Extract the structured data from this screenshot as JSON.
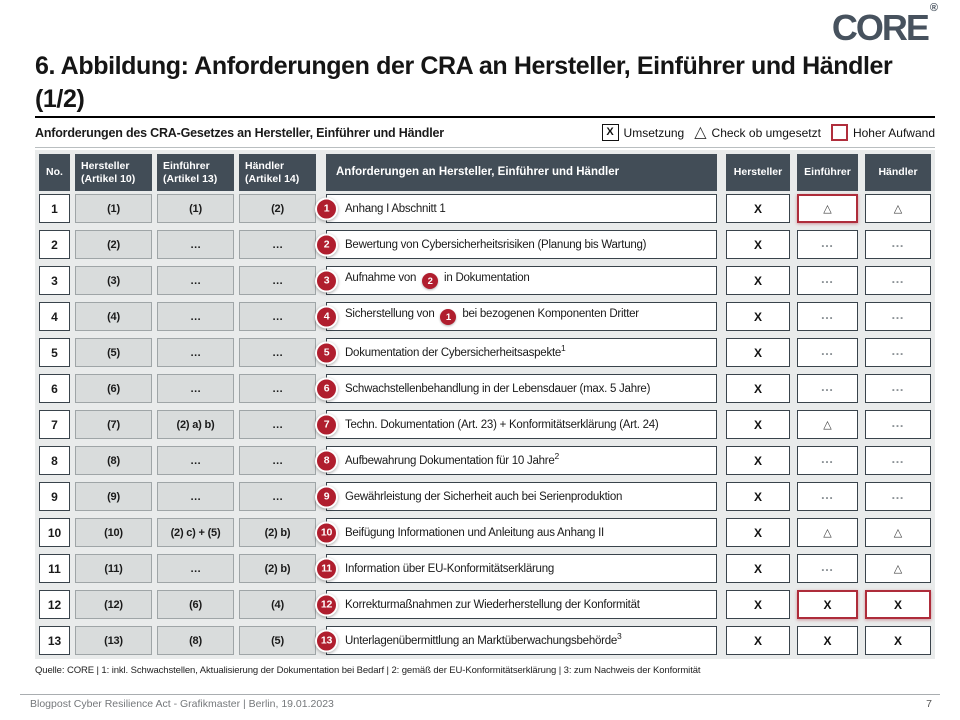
{
  "logo": {
    "text": "CORE",
    "reg": "®"
  },
  "title": "6. Abbildung: Anforderungen der CRA an Hersteller, Einführer und Händler (1/2)",
  "panel": {
    "header": "Anforderungen des CRA-Gesetzes  an Hersteller, Einführer und Händler",
    "legend": [
      {
        "icon": "x-box",
        "label": "Umsetzung"
      },
      {
        "icon": "triangle",
        "label": "Check ob umgesetzt"
      },
      {
        "icon": "red-box",
        "label": "Hoher Aufwand"
      }
    ]
  },
  "table": {
    "headers": [
      {
        "l1": "No."
      },
      {
        "l1": "Hersteller",
        "l2": "(Artikel 10)"
      },
      {
        "l1": "Einführer",
        "l2": "(Artikel 13)"
      },
      {
        "l1": "Händler",
        "l2": "(Artikel 14)"
      },
      {
        "l1": "Anforderungen an Hersteller, Einführer und Händler"
      },
      {
        "l1": "Hersteller"
      },
      {
        "l1": "Einführer"
      },
      {
        "l1": "Händler"
      }
    ],
    "rows": [
      {
        "no": "1",
        "articles": [
          "(1)",
          "(1)",
          "(2)"
        ],
        "badge": "1",
        "requirement": [
          {
            "t": "text",
            "v": "Anhang I Abschnitt 1"
          }
        ],
        "status": [
          {
            "mark": "X",
            "flag": false
          },
          {
            "mark": "triangle",
            "flag": true
          },
          {
            "mark": "triangle",
            "flag": false
          }
        ]
      },
      {
        "no": "2",
        "articles": [
          "(2)",
          "…",
          "…"
        ],
        "badge": "2",
        "requirement": [
          {
            "t": "text",
            "v": "Bewertung von Cybersicherheitsrisiken (Planung bis Wartung)"
          }
        ],
        "status": [
          {
            "mark": "X",
            "flag": false
          },
          {
            "mark": "dots",
            "flag": false
          },
          {
            "mark": "dots",
            "flag": false
          }
        ]
      },
      {
        "no": "3",
        "articles": [
          "(3)",
          "…",
          "…"
        ],
        "badge": "3",
        "requirement": [
          {
            "t": "text",
            "v": "Aufnahme von"
          },
          {
            "t": "badge",
            "v": "2"
          },
          {
            "t": "text",
            "v": "in Dokumentation"
          }
        ],
        "status": [
          {
            "mark": "X",
            "flag": false
          },
          {
            "mark": "dots",
            "flag": false
          },
          {
            "mark": "dots",
            "flag": false
          }
        ]
      },
      {
        "no": "4",
        "articles": [
          "(4)",
          "…",
          "…"
        ],
        "badge": "4",
        "requirement": [
          {
            "t": "text",
            "v": "Sicherstellung von"
          },
          {
            "t": "badge",
            "v": "1"
          },
          {
            "t": "text",
            "v": "bei bezogenen Komponenten Dritter"
          }
        ],
        "status": [
          {
            "mark": "X",
            "flag": false
          },
          {
            "mark": "dots",
            "flag": false
          },
          {
            "mark": "dots",
            "flag": false
          }
        ]
      },
      {
        "no": "5",
        "articles": [
          "(5)",
          "…",
          "…"
        ],
        "badge": "5",
        "requirement": [
          {
            "t": "text",
            "v": "Dokumentation der Cybersicherheitsaspekte"
          },
          {
            "t": "sup",
            "v": "1"
          }
        ],
        "status": [
          {
            "mark": "X",
            "flag": false
          },
          {
            "mark": "dots",
            "flag": false
          },
          {
            "mark": "dots",
            "flag": false
          }
        ]
      },
      {
        "no": "6",
        "articles": [
          "(6)",
          "…",
          "…"
        ],
        "badge": "6",
        "requirement": [
          {
            "t": "text",
            "v": "Schwachstellenbehandlung in der Lebensdauer (max. 5 Jahre)"
          }
        ],
        "status": [
          {
            "mark": "X",
            "flag": false
          },
          {
            "mark": "dots",
            "flag": false
          },
          {
            "mark": "dots",
            "flag": false
          }
        ]
      },
      {
        "no": "7",
        "articles": [
          "(7)",
          "(2) a) b)",
          "…"
        ],
        "badge": "7",
        "requirement": [
          {
            "t": "text",
            "v": "Techn. Dokumentation (Art. 23) + Konformitätserklärung (Art. 24)"
          }
        ],
        "status": [
          {
            "mark": "X",
            "flag": false
          },
          {
            "mark": "triangle",
            "flag": false
          },
          {
            "mark": "dots",
            "flag": false
          }
        ]
      },
      {
        "no": "8",
        "articles": [
          "(8)",
          "…",
          "…"
        ],
        "badge": "8",
        "requirement": [
          {
            "t": "text",
            "v": "Aufbewahrung Dokumentation für 10 Jahre"
          },
          {
            "t": "sup",
            "v": "2"
          }
        ],
        "status": [
          {
            "mark": "X",
            "flag": false
          },
          {
            "mark": "dots",
            "flag": false
          },
          {
            "mark": "dots",
            "flag": false
          }
        ]
      },
      {
        "no": "9",
        "articles": [
          "(9)",
          "…",
          "…"
        ],
        "badge": "9",
        "requirement": [
          {
            "t": "text",
            "v": "Gewährleistung der Sicherheit auch bei Serienproduktion"
          }
        ],
        "status": [
          {
            "mark": "X",
            "flag": false
          },
          {
            "mark": "dots",
            "flag": false
          },
          {
            "mark": "dots",
            "flag": false
          }
        ]
      },
      {
        "no": "10",
        "articles": [
          "(10)",
          "(2) c) + (5)",
          "(2) b)"
        ],
        "badge": "10",
        "requirement": [
          {
            "t": "text",
            "v": "Beifügung Informationen  und Anleitung aus Anhang II"
          }
        ],
        "status": [
          {
            "mark": "X",
            "flag": false
          },
          {
            "mark": "triangle",
            "flag": false
          },
          {
            "mark": "triangle",
            "flag": false
          }
        ]
      },
      {
        "no": "11",
        "articles": [
          "(11)",
          "…",
          "(2) b)"
        ],
        "badge": "11",
        "requirement": [
          {
            "t": "text",
            "v": "Information über EU-Konformitätserklärung"
          }
        ],
        "status": [
          {
            "mark": "X",
            "flag": false
          },
          {
            "mark": "dots",
            "flag": false
          },
          {
            "mark": "triangle",
            "flag": false
          }
        ]
      },
      {
        "no": "12",
        "articles": [
          "(12)",
          "(6)",
          "(4)"
        ],
        "badge": "12",
        "requirement": [
          {
            "t": "text",
            "v": "Korrekturmaßnahmen zur Wiederherstellung der Konformität"
          }
        ],
        "status": [
          {
            "mark": "X",
            "flag": false
          },
          {
            "mark": "X",
            "flag": true
          },
          {
            "mark": "X",
            "flag": true
          }
        ]
      },
      {
        "no": "13",
        "articles": [
          "(13)",
          "(8)",
          "(5)"
        ],
        "badge": "13",
        "requirement": [
          {
            "t": "text",
            "v": "Unterlagenübermittlung an Marktüberwachungsbehörde"
          },
          {
            "t": "sup",
            "v": "3"
          }
        ],
        "status": [
          {
            "mark": "X",
            "flag": false
          },
          {
            "mark": "X",
            "flag": false
          },
          {
            "mark": "X",
            "flag": false
          }
        ]
      }
    ]
  },
  "footnote": "Quelle: CORE  | 1: inkl. Schwachstellen, Aktualisierung der Dokumentation  bei Bedarf | 2: gemäß der EU-Konformitätserklärung | 3: zum Nachweis der Konformität",
  "footer": {
    "left": "Blogpost Cyber Resilience Act - Grafikmaster | Berlin, 19.01.2023",
    "page": "7"
  }
}
